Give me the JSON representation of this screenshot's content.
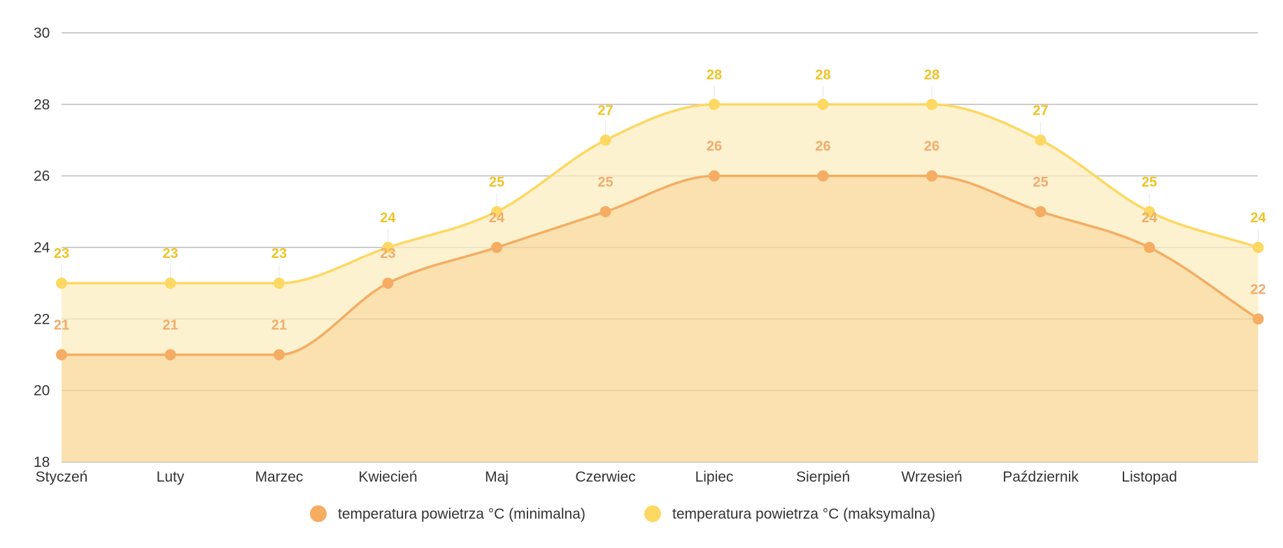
{
  "chart_data": {
    "type": "area",
    "categories": [
      "Styczeń",
      "Luty",
      "Marzec",
      "Kwiecień",
      "Maj",
      "Czerwiec",
      "Lipiec",
      "Sierpień",
      "Wrzesień",
      "Październik",
      "Listopad",
      ""
    ],
    "series": [
      {
        "name": "temperatura powietrza °C (minimalna)",
        "values": [
          21,
          21,
          21,
          23,
          24,
          25,
          26,
          26,
          26,
          25,
          24,
          22
        ],
        "color": "#f4ad63",
        "label_color": "#f0ac6d",
        "fill": "#fbe1b0"
      },
      {
        "name": "temperatura powietrza °C (maksymalna)",
        "values": [
          23,
          23,
          23,
          24,
          25,
          27,
          28,
          28,
          28,
          27,
          25,
          24
        ],
        "color": "#fdd862",
        "label_color": "#f0c327",
        "fill": "#fdf2d0"
      }
    ],
    "ylim": [
      18,
      30
    ],
    "yticks": [
      18,
      20,
      22,
      24,
      26,
      28,
      30
    ],
    "grid": true,
    "legend_position": "bottom",
    "title": "",
    "xlabel": "",
    "ylabel": ""
  }
}
